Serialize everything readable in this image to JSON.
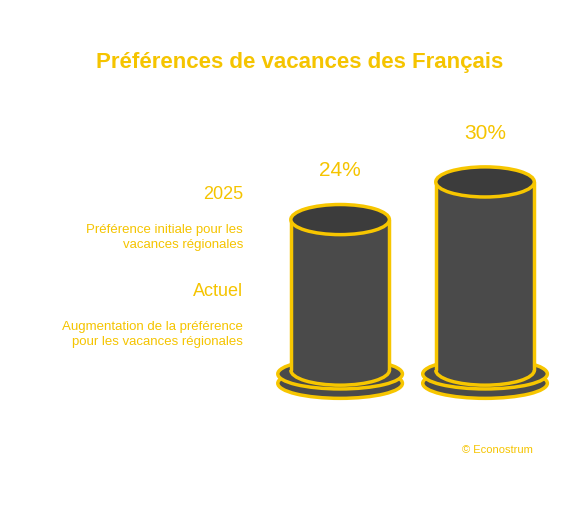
{
  "chart_data": {
    "type": "bar",
    "title": "Préférences de vacances des Français",
    "categories": [
      "2025",
      "Actuel"
    ],
    "category_descriptions": [
      "Préférence initiale pour les vacances régionales",
      "Augmentation de la préférence pour les vacances régionales"
    ],
    "values": [
      24,
      30
    ],
    "value_labels": [
      "24%",
      "30%"
    ],
    "data_labels": true,
    "tick_labels": false,
    "color": "#4a4a4a",
    "source": "© Econostrum"
  }
}
